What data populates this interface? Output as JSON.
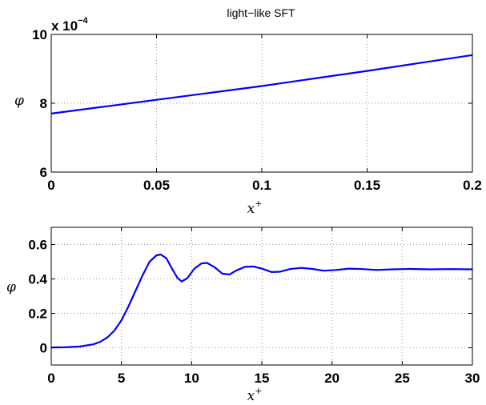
{
  "chart_data": [
    {
      "type": "line",
      "title": "light−like SFT",
      "xlabel": "x",
      "xlabel_sup": "+",
      "ylabel": "φ",
      "xlim": [
        0,
        0.2
      ],
      "ylim": [
        6,
        10
      ],
      "y_multiplier_text": "x 10",
      "y_multiplier_exp": "−4",
      "grid": true,
      "xticks": [
        0,
        0.05,
        0.1,
        0.15,
        0.2
      ],
      "xtick_labels": [
        "0",
        "0.05",
        "0.1",
        "0.15",
        "0.2"
      ],
      "yticks": [
        6,
        8,
        10
      ],
      "ytick_labels": [
        "6",
        "8",
        "10"
      ],
      "color": "#0000ff",
      "x": [
        0,
        0.025,
        0.05,
        0.075,
        0.1,
        0.125,
        0.15,
        0.175,
        0.2
      ],
      "y": [
        7.7,
        7.9,
        8.1,
        8.3,
        8.5,
        8.72,
        8.94,
        9.17,
        9.4
      ]
    },
    {
      "type": "line",
      "title": "",
      "xlabel": "x",
      "xlabel_sup": "+",
      "ylabel": "φ",
      "xlim": [
        0,
        30
      ],
      "ylim": [
        -0.1,
        0.7
      ],
      "grid": true,
      "xticks": [
        0,
        5,
        10,
        15,
        20,
        25,
        30
      ],
      "xtick_labels": [
        "0",
        "5",
        "10",
        "15",
        "20",
        "25",
        "30"
      ],
      "yticks": [
        0,
        0.2,
        0.4,
        0.6
      ],
      "ytick_labels": [
        "0",
        "0.2",
        "0.4",
        "0.6"
      ],
      "color": "#0000ff",
      "x": [
        0,
        1,
        2,
        3,
        3.5,
        4,
        4.5,
        5,
        5.5,
        6,
        6.5,
        7,
        7.5,
        7.8,
        8.2,
        8.6,
        9,
        9.3,
        9.7,
        10.2,
        10.7,
        11.1,
        11.6,
        12.2,
        12.7,
        13.2,
        13.8,
        14.4,
        15,
        15.7,
        16.3,
        17,
        17.8,
        18.6,
        19.4,
        20.3,
        21.2,
        22.2,
        23.2,
        24.3,
        25.5,
        27,
        28.5,
        30
      ],
      "y": [
        0.002,
        0.003,
        0.007,
        0.02,
        0.035,
        0.06,
        0.1,
        0.16,
        0.24,
        0.33,
        0.42,
        0.5,
        0.537,
        0.542,
        0.52,
        0.46,
        0.405,
        0.385,
        0.405,
        0.46,
        0.49,
        0.493,
        0.47,
        0.43,
        0.426,
        0.45,
        0.47,
        0.472,
        0.46,
        0.44,
        0.442,
        0.457,
        0.464,
        0.458,
        0.448,
        0.452,
        0.46,
        0.457,
        0.452,
        0.456,
        0.458,
        0.456,
        0.457,
        0.456
      ]
    }
  ]
}
